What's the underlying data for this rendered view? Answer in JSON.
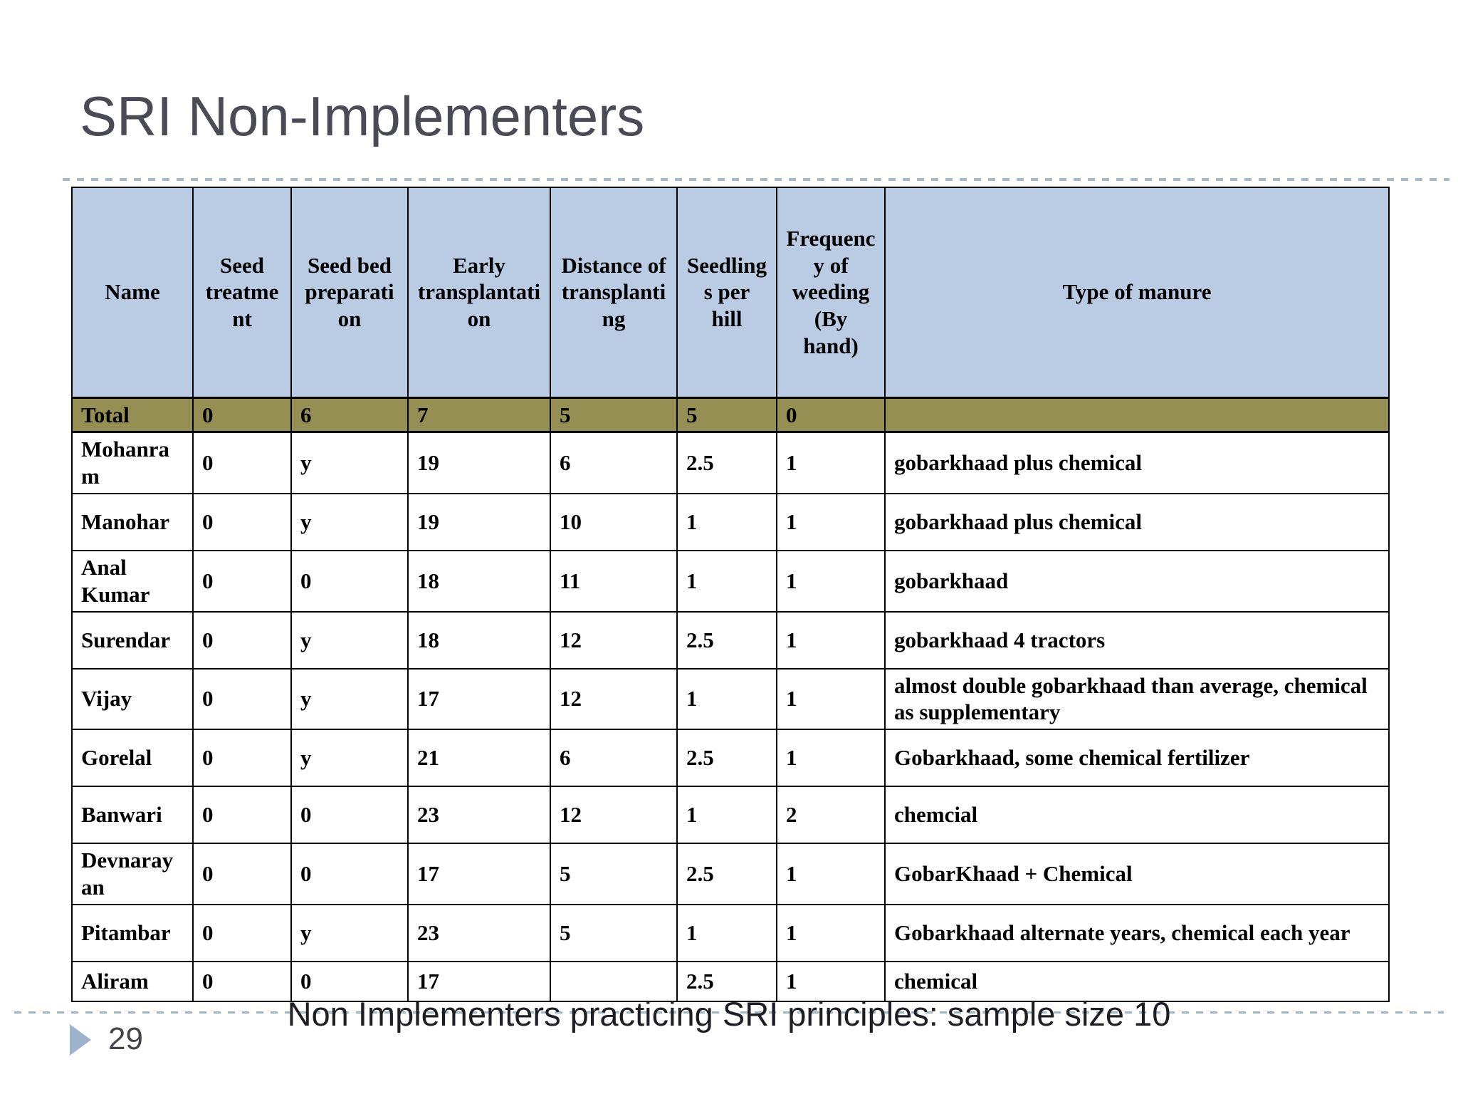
{
  "slide": {
    "title": "SRI Non-Implementers",
    "caption": "Non Implementers practicing SRI principles: sample size 10",
    "page_number": "29"
  },
  "table": {
    "header": [
      "Name",
      "Seed treatment",
      "Seed bed preparation",
      "Early transplantation",
      "Distance of transplanting",
      "Seedlings per hill",
      "Frequency of weeding (By hand)",
      "Type of manure"
    ],
    "total": [
      "Total",
      "0",
      "6",
      "7",
      "5",
      "5",
      "0",
      ""
    ],
    "rows": [
      [
        "Mohanram",
        "0",
        "y",
        "19",
        "6",
        "2.5",
        "1",
        "gobarkhaad plus chemical"
      ],
      [
        "Manohar",
        "0",
        "y",
        "19",
        "10",
        "1",
        "1",
        "gobarkhaad plus chemical"
      ],
      [
        "Anal Kumar",
        "0",
        "0",
        "18",
        "11",
        "1",
        "1",
        "gobarkhaad"
      ],
      [
        "Surendar",
        "0",
        "y",
        "18",
        "12",
        "2.5",
        "1",
        "gobarkhaad 4 tractors"
      ],
      [
        "Vijay",
        "0",
        "y",
        "17",
        "12",
        "1",
        "1",
        "almost double gobarkhaad than average, chemical as supplementary"
      ],
      [
        "Gorelal",
        "0",
        "y",
        "21",
        "6",
        "2.5",
        "1",
        "Gobarkhaad, some chemical fertilizer"
      ],
      [
        "Banwari",
        "0",
        "0",
        "23",
        "12",
        "1",
        "2",
        "chemcial"
      ],
      [
        "Devnarayan",
        "0",
        "0",
        "17",
        "5",
        "2.5",
        "1",
        "GobarKhaad + Chemical"
      ],
      [
        "Pitambar",
        "0",
        "y",
        "23",
        "5",
        "1",
        "1",
        "Gobarkhaad alternate years, chemical each year"
      ],
      [
        "Aliram",
        "0",
        "0",
        "17",
        "",
        "2.5",
        "1",
        "chemical"
      ]
    ]
  },
  "colors": {
    "header_background": "#b9cce4",
    "total_row_background": "#968f54",
    "title_text": "#4b4b56",
    "dashed_line": "#a6b9cc",
    "table_border": "#000000",
    "page_arrow": "#9db4cd"
  }
}
